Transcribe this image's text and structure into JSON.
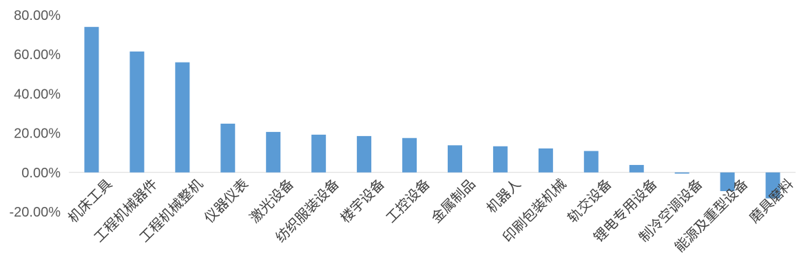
{
  "chart_data": {
    "type": "bar",
    "title": "",
    "xlabel": "",
    "ylabel": "",
    "categories": [
      "机床工具",
      "工程机械器件",
      "工程机械整机",
      "仪器仪表",
      "激光设备",
      "纺织服装设备",
      "楼宇设备",
      "工控设备",
      "金属制品",
      "机器人",
      "印刷包装机械",
      "轨交设备",
      "锂电专用设备",
      "制冷空调设备",
      "能源及重型设备",
      "磨具磨料"
    ],
    "values": [
      74.0,
      61.5,
      56.0,
      24.8,
      20.6,
      19.2,
      18.5,
      17.5,
      13.8,
      13.3,
      12.2,
      10.9,
      3.8,
      -0.6,
      -9.5,
      -13.2
    ],
    "ylim": [
      -20,
      80
    ],
    "yticks": [
      80,
      60,
      40,
      20,
      0,
      -20
    ],
    "ytick_labels": [
      "80.00%",
      "60.00%",
      "40.00%",
      "20.00%",
      "0.00%",
      "-20.00%"
    ],
    "bar_color": "#5B9BD5",
    "grid": false,
    "legend": "none"
  }
}
